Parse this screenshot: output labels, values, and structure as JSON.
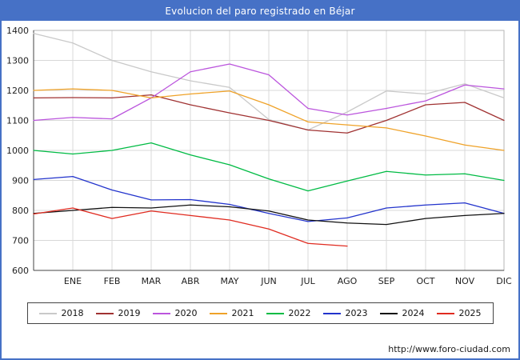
{
  "title": "Evolucion del paro registrado en Béjar",
  "footer": {
    "url": "http://www.foro-ciudad.com"
  },
  "colors": {
    "frame": "#4671c6",
    "titlebar": "#4671c6",
    "grid": "#d8d8d8",
    "axis": "#444444",
    "plot_border": "#b5b5b5",
    "tick_text": "#222222"
  },
  "chart_data": {
    "type": "line",
    "title": "Evolucion del paro registrado en Béjar",
    "xlabel": "",
    "ylabel": "",
    "ylim": [
      600,
      1400
    ],
    "y_ticks": [
      600,
      700,
      800,
      900,
      1000,
      1100,
      1200,
      1300,
      1400
    ],
    "grid": true,
    "legend_position": "bottom",
    "categories": [
      "",
      "ENE",
      "FEB",
      "MAR",
      "ABR",
      "MAY",
      "JUN",
      "JUL",
      "AGO",
      "SEP",
      "OCT",
      "NOV",
      "DIC"
    ],
    "series": [
      {
        "name": "2018",
        "color": "#c9c9c9",
        "values": [
          1390,
          1358,
          1300,
          1262,
          1232,
          1210,
          1103,
          1068,
          1128,
          1198,
          1188,
          1222,
          1175
        ]
      },
      {
        "name": "2019",
        "color": "#a03232",
        "values": [
          1175,
          1176,
          1175,
          1185,
          1152,
          1125,
          1100,
          1068,
          1058,
          1100,
          1152,
          1160,
          1100
        ]
      },
      {
        "name": "2020",
        "color": "#bb55dd",
        "values": [
          1100,
          1110,
          1105,
          1175,
          1262,
          1288,
          1252,
          1140,
          1118,
          1140,
          1165,
          1218,
          1205
        ]
      },
      {
        "name": "2021",
        "color": "#efa228",
        "values": [
          1200,
          1205,
          1200,
          1175,
          1188,
          1198,
          1152,
          1095,
          1085,
          1075,
          1048,
          1018,
          1000
        ]
      },
      {
        "name": "2022",
        "color": "#00bb44",
        "values": [
          1000,
          988,
          1000,
          1025,
          985,
          952,
          905,
          865,
          898,
          930,
          918,
          922,
          900
        ]
      },
      {
        "name": "2023",
        "color": "#2233cc",
        "values": [
          903,
          913,
          868,
          835,
          836,
          820,
          790,
          763,
          775,
          808,
          818,
          825,
          790
        ]
      },
      {
        "name": "2024",
        "color": "#111111",
        "values": [
          790,
          800,
          810,
          808,
          818,
          812,
          798,
          768,
          758,
          753,
          773,
          783,
          790
        ]
      },
      {
        "name": "2025",
        "color": "#e02b20",
        "values": [
          788,
          808,
          773,
          798,
          783,
          768,
          738,
          690,
          681
        ]
      }
    ]
  }
}
